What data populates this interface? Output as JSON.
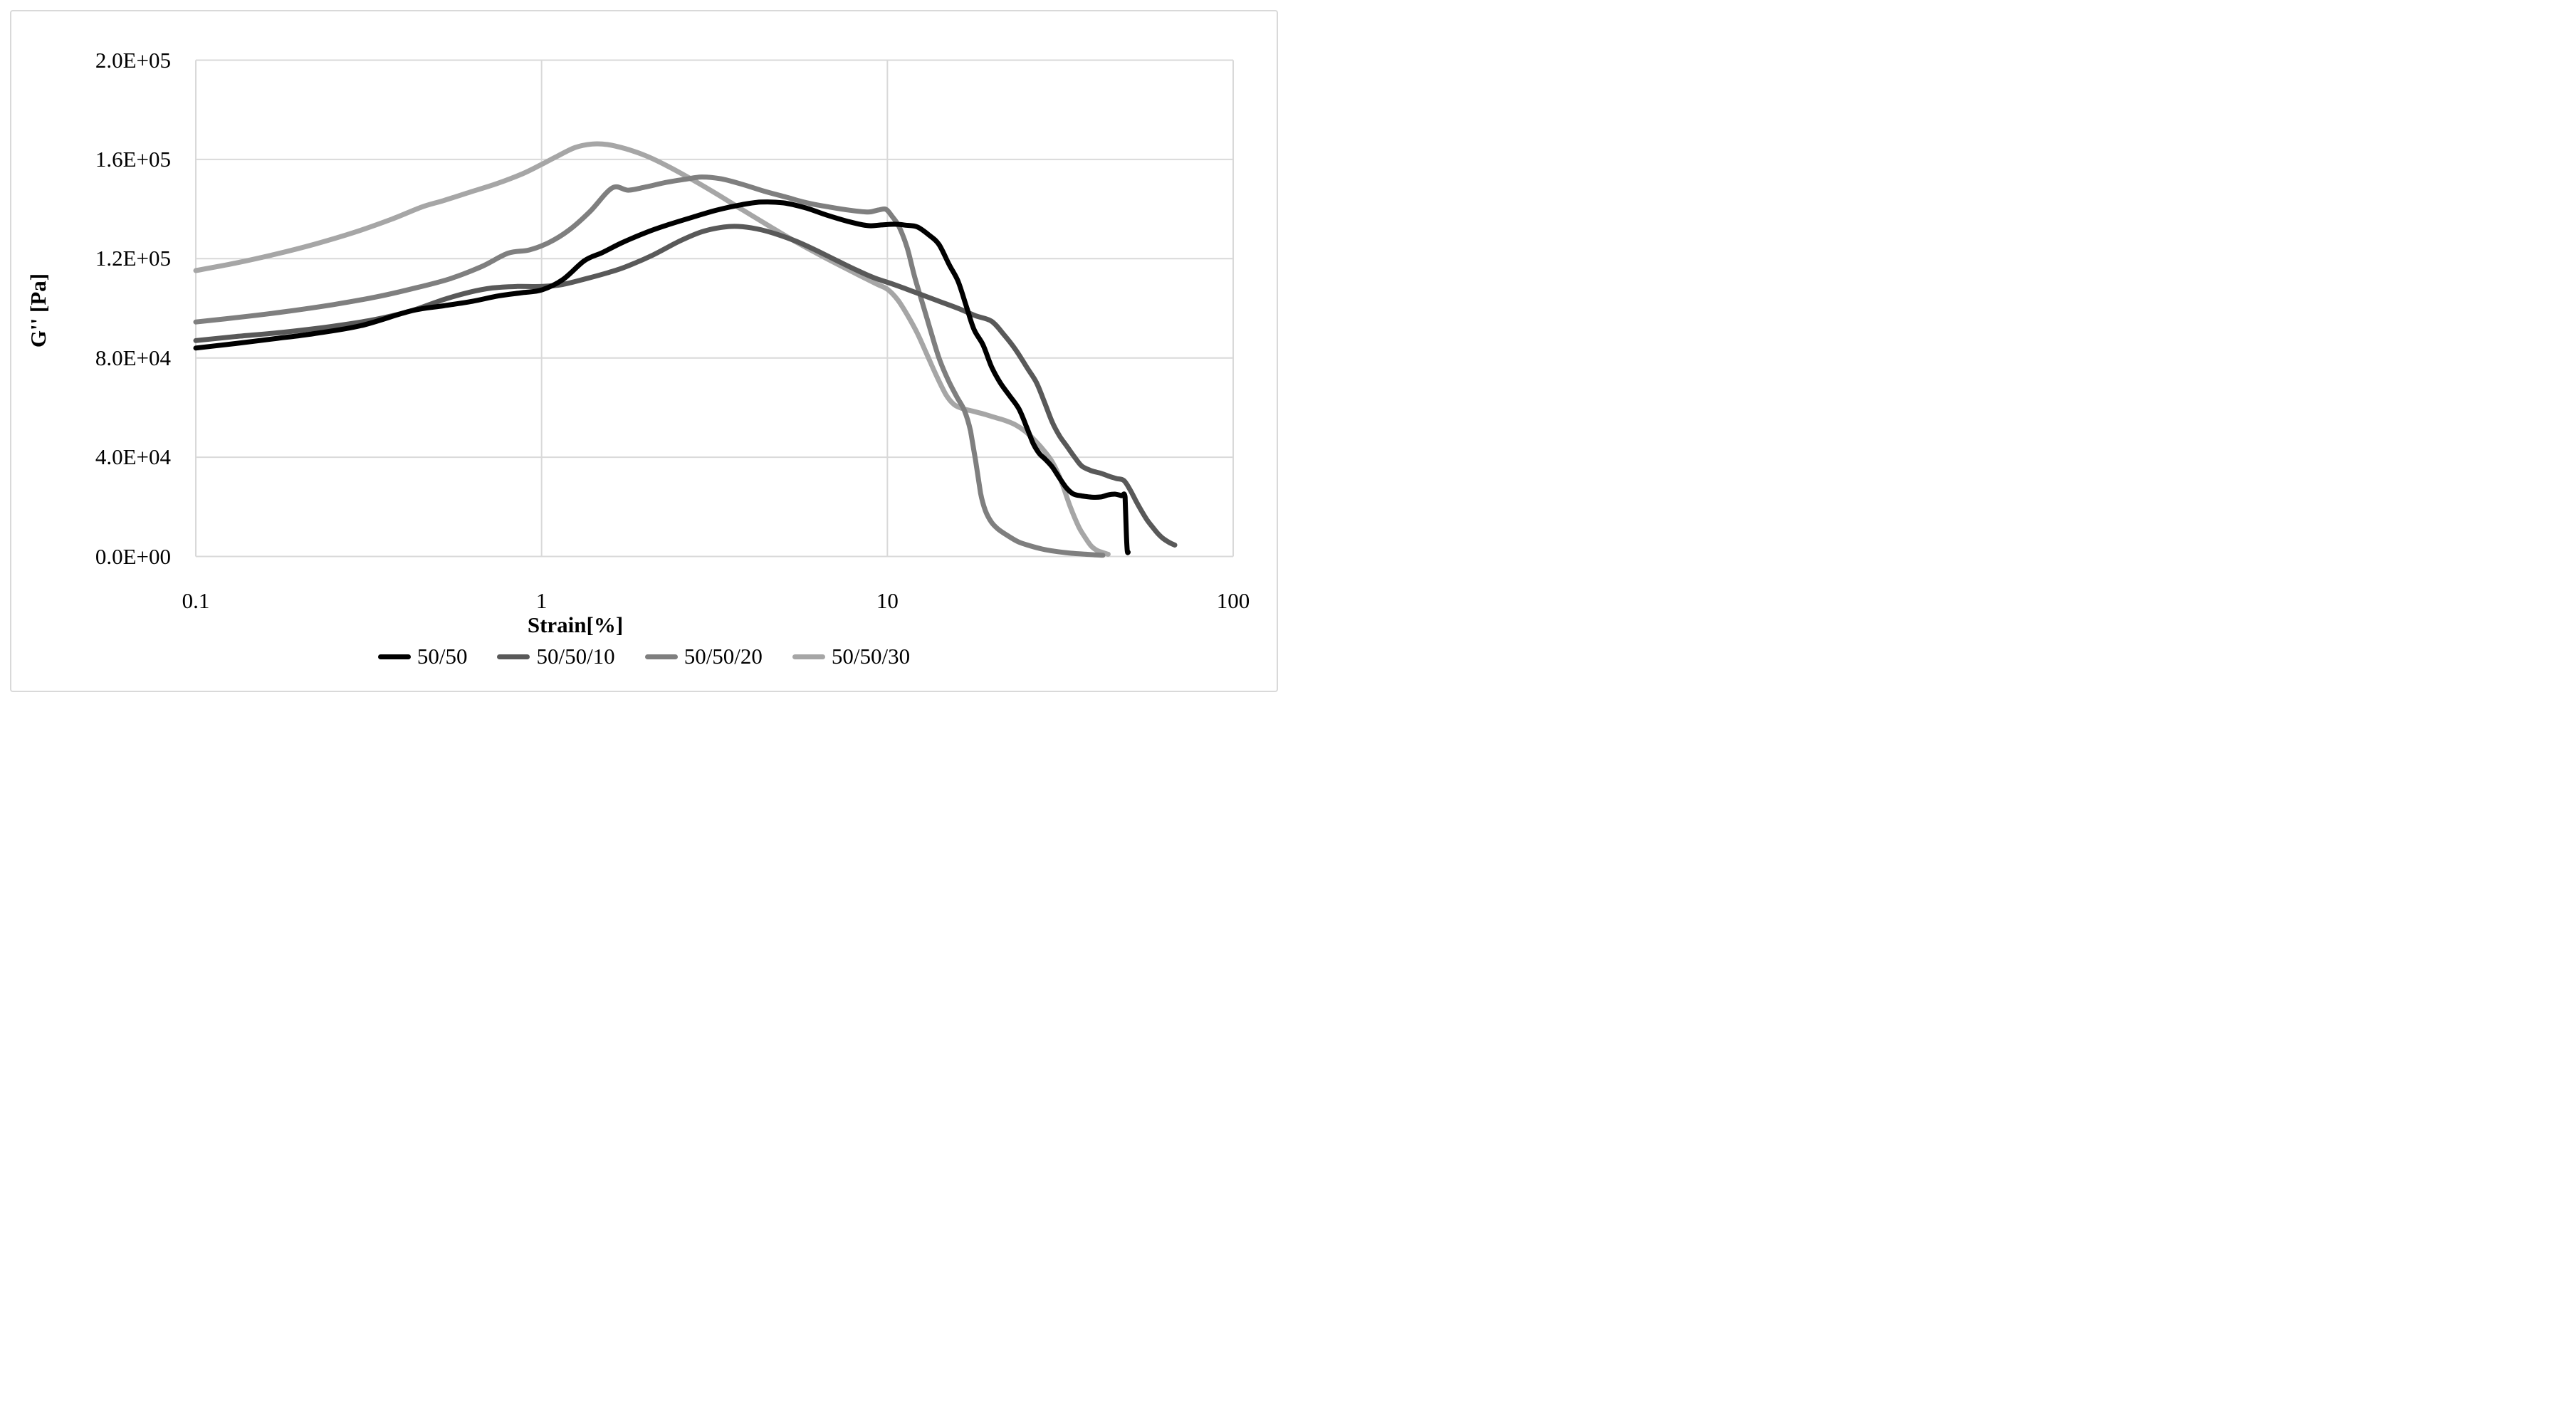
{
  "window": {
    "background": "#ffffff",
    "border_color": "#d9d9d9"
  },
  "chart_data": {
    "type": "line",
    "title": "",
    "xlabel": "Strain[%]",
    "ylabel": "G'' [Pa]",
    "x_scale": "log",
    "xlim": [
      0.1,
      100
    ],
    "ylim": [
      0,
      200000
    ],
    "grid": true,
    "grid_color": "#d9d9d9",
    "line_width": 7,
    "legend_position": "bottom",
    "x_ticks": [
      {
        "value": 0.1,
        "label": "0.1"
      },
      {
        "value": 1,
        "label": "1"
      },
      {
        "value": 10,
        "label": "10"
      },
      {
        "value": 100,
        "label": "100"
      }
    ],
    "y_ticks": [
      {
        "value": 0,
        "label": "0.0E+00"
      },
      {
        "value": 40000,
        "label": "4.0E+04"
      },
      {
        "value": 80000,
        "label": "8.0E+04"
      },
      {
        "value": 120000,
        "label": "1.2E+05"
      },
      {
        "value": 160000,
        "label": "1.6E+05"
      },
      {
        "value": 200000,
        "label": "2.0E+05"
      }
    ],
    "series": [
      {
        "name": "50/50",
        "color": "#000000",
        "points": [
          [
            0.1,
            84000
          ],
          [
            0.13,
            85800
          ],
          [
            0.17,
            87800
          ],
          [
            0.22,
            89800
          ],
          [
            0.3,
            93000
          ],
          [
            0.42,
            99000
          ],
          [
            0.52,
            101000
          ],
          [
            0.63,
            102800
          ],
          [
            0.75,
            105000
          ],
          [
            0.88,
            106300
          ],
          [
            1.0,
            107400
          ],
          [
            1.15,
            111500
          ],
          [
            1.33,
            119200
          ],
          [
            1.5,
            122500
          ],
          [
            1.7,
            126300
          ],
          [
            2.0,
            130500
          ],
          [
            2.3,
            133500
          ],
          [
            2.7,
            136500
          ],
          [
            3.2,
            139500
          ],
          [
            3.7,
            141500
          ],
          [
            4.3,
            142800
          ],
          [
            5.0,
            142500
          ],
          [
            5.8,
            140500
          ],
          [
            6.7,
            137500
          ],
          [
            7.8,
            134800
          ],
          [
            8.8,
            133300
          ],
          [
            9.6,
            133600
          ],
          [
            10.5,
            133900
          ],
          [
            11.3,
            133500
          ],
          [
            12.2,
            132800
          ],
          [
            13.2,
            129500
          ],
          [
            14.1,
            125700
          ],
          [
            15.1,
            117500
          ],
          [
            16.0,
            111000
          ],
          [
            16.9,
            101000
          ],
          [
            17.8,
            91500
          ],
          [
            18.9,
            85300
          ],
          [
            20.0,
            76500
          ],
          [
            21.2,
            70000
          ],
          [
            22.5,
            65000
          ],
          [
            24.0,
            59500
          ],
          [
            25.3,
            52000
          ],
          [
            26.4,
            45500
          ],
          [
            27.5,
            41500
          ],
          [
            28.7,
            39000
          ],
          [
            30.0,
            36000
          ],
          [
            31.5,
            31500
          ],
          [
            33.0,
            27500
          ],
          [
            34.5,
            25200
          ],
          [
            36.5,
            24400
          ],
          [
            39.0,
            23900
          ],
          [
            41.5,
            24000
          ],
          [
            43.5,
            24800
          ],
          [
            45.5,
            25100
          ],
          [
            47.5,
            24500
          ],
          [
            48.7,
            23900
          ],
          [
            49.1,
            9000
          ],
          [
            49.4,
            2200
          ],
          [
            49.7,
            1700
          ]
        ]
      },
      {
        "name": "50/50/10",
        "color": "#595959",
        "points": [
          [
            0.1,
            87000
          ],
          [
            0.13,
            88600
          ],
          [
            0.18,
            90400
          ],
          [
            0.25,
            92800
          ],
          [
            0.33,
            95500
          ],
          [
            0.42,
            99000
          ],
          [
            0.52,
            103500
          ],
          [
            0.62,
            106500
          ],
          [
            0.72,
            108200
          ],
          [
            0.85,
            108800
          ],
          [
            1.0,
            108800
          ],
          [
            1.15,
            109600
          ],
          [
            1.35,
            112000
          ],
          [
            1.55,
            114300
          ],
          [
            1.75,
            116700
          ],
          [
            2.1,
            121500
          ],
          [
            2.5,
            127000
          ],
          [
            2.9,
            130800
          ],
          [
            3.3,
            132600
          ],
          [
            3.7,
            133000
          ],
          [
            4.2,
            132000
          ],
          [
            4.8,
            129800
          ],
          [
            5.5,
            126800
          ],
          [
            6.3,
            123000
          ],
          [
            7.2,
            119000
          ],
          [
            8.2,
            115200
          ],
          [
            9.2,
            112200
          ],
          [
            10.5,
            109500
          ],
          [
            12.0,
            106500
          ],
          [
            14.0,
            103000
          ],
          [
            16.0,
            100000
          ],
          [
            18.0,
            97000
          ],
          [
            20.0,
            94800
          ],
          [
            21.7,
            89500
          ],
          [
            23.5,
            83300
          ],
          [
            25.5,
            75500
          ],
          [
            27.0,
            70000
          ],
          [
            28.5,
            62000
          ],
          [
            30.0,
            54000
          ],
          [
            31.5,
            48500
          ],
          [
            33.0,
            44500
          ],
          [
            35.0,
            39500
          ],
          [
            36.6,
            36300
          ],
          [
            39.0,
            34500
          ],
          [
            41.5,
            33500
          ],
          [
            44.0,
            32200
          ],
          [
            46.0,
            31400
          ],
          [
            48.3,
            30600
          ],
          [
            50.5,
            26500
          ],
          [
            52.5,
            22000
          ],
          [
            54.5,
            18000
          ],
          [
            56.5,
            14500
          ],
          [
            58.5,
            11800
          ],
          [
            60.5,
            9300
          ],
          [
            62.5,
            7400
          ],
          [
            64.5,
            6100
          ],
          [
            66.0,
            5300
          ],
          [
            67.8,
            4600
          ]
        ]
      },
      {
        "name": "50/50/20",
        "color": "#7f7f7f",
        "points": [
          [
            0.1,
            94500
          ],
          [
            0.13,
            96200
          ],
          [
            0.18,
            98600
          ],
          [
            0.25,
            101500
          ],
          [
            0.33,
            104500
          ],
          [
            0.42,
            107800
          ],
          [
            0.54,
            111800
          ],
          [
            0.67,
            116800
          ],
          [
            0.8,
            122200
          ],
          [
            0.92,
            123500
          ],
          [
            1.05,
            126500
          ],
          [
            1.2,
            131500
          ],
          [
            1.38,
            139000
          ],
          [
            1.6,
            148500
          ],
          [
            1.78,
            147600
          ],
          [
            2.0,
            148900
          ],
          [
            2.3,
            150800
          ],
          [
            2.6,
            152000
          ],
          [
            2.9,
            152900
          ],
          [
            3.3,
            152200
          ],
          [
            3.8,
            150000
          ],
          [
            4.4,
            147200
          ],
          [
            5.1,
            144800
          ],
          [
            5.9,
            142400
          ],
          [
            6.8,
            140800
          ],
          [
            7.8,
            139500
          ],
          [
            8.8,
            138800
          ],
          [
            9.4,
            139600
          ],
          [
            9.9,
            139900
          ],
          [
            10.3,
            137200
          ],
          [
            10.8,
            133000
          ],
          [
            11.4,
            124500
          ],
          [
            12.0,
            112500
          ],
          [
            12.7,
            101000
          ],
          [
            13.3,
            91500
          ],
          [
            14.1,
            80000
          ],
          [
            15.0,
            71000
          ],
          [
            15.9,
            64200
          ],
          [
            16.7,
            58800
          ],
          [
            17.4,
            50500
          ],
          [
            18.0,
            38500
          ],
          [
            18.6,
            25500
          ],
          [
            19.2,
            18500
          ],
          [
            20.0,
            13800
          ],
          [
            21.0,
            10800
          ],
          [
            22.5,
            8000
          ],
          [
            24.0,
            5800
          ],
          [
            26.0,
            4200
          ],
          [
            28.0,
            3000
          ],
          [
            30.5,
            2100
          ],
          [
            33.5,
            1400
          ],
          [
            36.5,
            1000
          ],
          [
            39.5,
            700
          ],
          [
            42.0,
            500
          ]
        ]
      },
      {
        "name": "50/50/30",
        "color": "#a6a6a6",
        "points": [
          [
            0.1,
            115200
          ],
          [
            0.13,
            118200
          ],
          [
            0.17,
            121800
          ],
          [
            0.22,
            125800
          ],
          [
            0.29,
            130800
          ],
          [
            0.37,
            136000
          ],
          [
            0.45,
            140800
          ],
          [
            0.52,
            143400
          ],
          [
            0.62,
            146800
          ],
          [
            0.74,
            150200
          ],
          [
            0.88,
            154200
          ],
          [
            1.0,
            158000
          ],
          [
            1.1,
            161000
          ],
          [
            1.25,
            164800
          ],
          [
            1.4,
            166200
          ],
          [
            1.55,
            166000
          ],
          [
            1.75,
            164300
          ],
          [
            2.0,
            161500
          ],
          [
            2.3,
            157500
          ],
          [
            2.7,
            152200
          ],
          [
            3.2,
            146200
          ],
          [
            3.8,
            139800
          ],
          [
            4.6,
            132800
          ],
          [
            5.5,
            126400
          ],
          [
            6.6,
            120400
          ],
          [
            7.9,
            114800
          ],
          [
            9.3,
            109800
          ],
          [
            10.0,
            107700
          ],
          [
            10.7,
            103500
          ],
          [
            11.4,
            97500
          ],
          [
            12.2,
            90000
          ],
          [
            13.0,
            81500
          ],
          [
            13.9,
            72500
          ],
          [
            14.8,
            65000
          ],
          [
            15.6,
            61200
          ],
          [
            16.5,
            59600
          ],
          [
            17.6,
            58600
          ],
          [
            19.0,
            57400
          ],
          [
            20.5,
            56000
          ],
          [
            22.0,
            54700
          ],
          [
            23.5,
            53000
          ],
          [
            25.0,
            50500
          ],
          [
            26.6,
            47000
          ],
          [
            28.3,
            42800
          ],
          [
            30.0,
            38000
          ],
          [
            31.8,
            30500
          ],
          [
            33.8,
            20000
          ],
          [
            35.8,
            11800
          ],
          [
            37.3,
            7700
          ],
          [
            38.8,
            4300
          ],
          [
            40.3,
            2500
          ],
          [
            41.9,
            1600
          ],
          [
            43.5,
            900
          ]
        ]
      }
    ]
  }
}
